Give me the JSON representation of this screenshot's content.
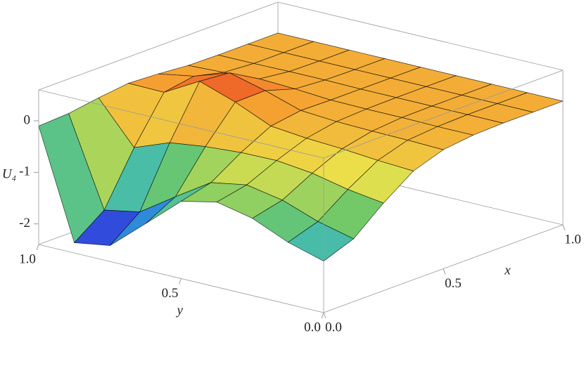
{
  "chart_data": {
    "type": "surface",
    "xlabel": "x",
    "ylabel": "y",
    "zlabel": "U₄",
    "x": [
      0,
      0.125,
      0.25,
      0.375,
      0.5,
      0.625,
      0.75,
      0.875,
      1
    ],
    "y": [
      0,
      0.125,
      0.25,
      0.375,
      0.5,
      0.625,
      0.75,
      0.875,
      1
    ],
    "z": [
      [
        -1.4,
        -1.18,
        -0.7,
        -0.29,
        -0.09,
        -0.02,
        0,
        0,
        0
      ],
      [
        -1.2,
        -1.01,
        -0.6,
        -0.25,
        -0.07,
        -0.02,
        0,
        0,
        0
      ],
      [
        -0.9,
        -0.76,
        -0.45,
        -0.19,
        -0.06,
        -0.01,
        0,
        0,
        0
      ],
      [
        -0.75,
        -0.63,
        -0.37,
        -0.15,
        -0.04,
        -0.01,
        0,
        0,
        0
      ],
      [
        -0.9,
        -0.75,
        -0.38,
        -0.08,
        0.01,
        0,
        0,
        0,
        0
      ],
      [
        -1.5,
        -1.19,
        -0.43,
        0.22,
        0.23,
        0.05,
        0.01,
        0,
        0
      ],
      [
        -2.09,
        -1.65,
        -0.52,
        0.46,
        0.41,
        0.08,
        0.01,
        0,
        0
      ],
      [
        -2.2,
        -1.78,
        -0.78,
        0.08,
        0.18,
        0.04,
        0,
        0,
        0
      ],
      [
        -0.1,
        -0.07,
        0.02,
        0.09,
        0.06,
        0.01,
        0,
        0,
        0
      ]
    ],
    "xlim": [
      0,
      1
    ],
    "ylim": [
      0,
      1
    ],
    "zlim": [
      -2.4,
      0.6
    ],
    "xticks": [
      {
        "value": 0,
        "label": "0.0"
      },
      0.5,
      {
        "value": 1,
        "label": "1.0"
      }
    ],
    "yticks": [
      {
        "value": 0,
        "label": "0.0"
      },
      0.5,
      {
        "value": 1,
        "label": "1.0"
      }
    ],
    "zticks": [
      -2,
      -1,
      0
    ],
    "colormap": [
      "#4a1a96",
      "#2f4fe0",
      "#2fb4d4",
      "#6cc86a",
      "#ece24a",
      "#f5a032",
      "#e8281e"
    ],
    "mesh_color": "#000000",
    "box_color": "#9a9a9a"
  }
}
